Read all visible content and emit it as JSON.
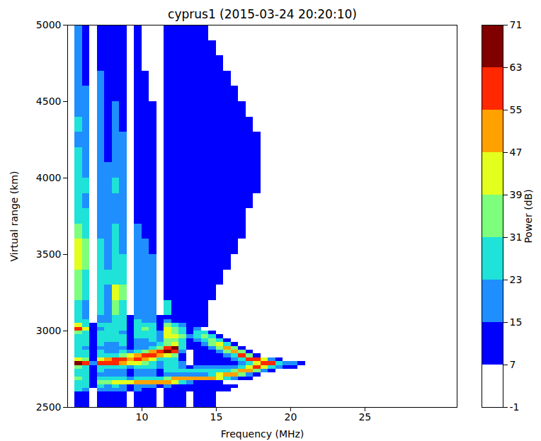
{
  "chart_data": {
    "type": "heatmap",
    "title": "cyprus1 (2015-03-24 20:20:10)",
    "x_label": "Frequency (MHz)",
    "y_label": "Virtual range (km)",
    "xlim": [
      5,
      31.2
    ],
    "ylim": [
      2500,
      5000
    ],
    "xticks": [
      10,
      15,
      20,
      25
    ],
    "yticks": [
      2500,
      3000,
      3500,
      4000,
      4500,
      5000
    ],
    "colorbar": {
      "label": "Power (dB)",
      "lim": [
        -1,
        71
      ],
      "ticks": [
        -1,
        7,
        15,
        23,
        31,
        39,
        47,
        55,
        63,
        71
      ],
      "colors": [
        "#ffffff",
        "#0000ff",
        "#1f8fff",
        "#1fe2d8",
        "#7dff7d",
        "#e3ff1d",
        "#ffa200",
        "#ff2800",
        "#800000"
      ]
    },
    "x_edges": [
      5.5,
      6,
      6.5,
      7,
      7.5,
      8,
      8.5,
      9,
      9.5,
      10,
      10.5,
      11,
      11.5,
      12,
      12.5,
      13,
      13.5,
      14,
      14.5,
      15,
      15.5,
      16,
      16.5,
      17,
      17.5,
      18,
      18.5,
      19,
      19.5,
      20,
      20.5,
      21
    ],
    "y_edges": [
      2500,
      2600,
      2625,
      2650,
      2675,
      2700,
      2725,
      2750,
      2775,
      2800,
      2825,
      2850,
      2875,
      2900,
      2925,
      2950,
      2975,
      3000,
      3025,
      3050,
      3075,
      3100,
      3200,
      3300,
      3400,
      3500,
      3600,
      3700,
      3800,
      3900,
      4000,
      4100,
      4200,
      4300,
      4400,
      4500,
      4600,
      4700,
      4800,
      4900,
      5000
    ],
    "z": [
      [
        11,
        11,
        null,
        11,
        11,
        11,
        11,
        null,
        11,
        11,
        11,
        null,
        11,
        11,
        11,
        null,
        11,
        11,
        11,
        null,
        null,
        null,
        null,
        null,
        null,
        null,
        null,
        null,
        null,
        null,
        null
      ],
      [
        27,
        19,
        null,
        19,
        19,
        19,
        19,
        11,
        19,
        11,
        11,
        null,
        11,
        11,
        11,
        11,
        11,
        11,
        11,
        11,
        11,
        null,
        null,
        null,
        null,
        null,
        null,
        null,
        null,
        null,
        null
      ],
      [
        27,
        27,
        11,
        27,
        19,
        27,
        19,
        11,
        19,
        19,
        19,
        11,
        19,
        11,
        11,
        11,
        11,
        11,
        11,
        11,
        11,
        11,
        null,
        null,
        null,
        null,
        null,
        null,
        null,
        null,
        null
      ],
      [
        27,
        27,
        11,
        35,
        35,
        43,
        43,
        43,
        51,
        51,
        51,
        51,
        51,
        43,
        27,
        19,
        11,
        11,
        11,
        11,
        null,
        null,
        null,
        null,
        null,
        null,
        null,
        null,
        null,
        null,
        null
      ],
      [
        35,
        27,
        11,
        27,
        27,
        27,
        27,
        19,
        27,
        27,
        27,
        27,
        35,
        51,
        51,
        51,
        51,
        51,
        51,
        43,
        27,
        19,
        11,
        11,
        null,
        null,
        null,
        null,
        null,
        null,
        null
      ],
      [
        27,
        27,
        11,
        19,
        19,
        19,
        19,
        11,
        19,
        19,
        19,
        11,
        19,
        19,
        19,
        19,
        19,
        19,
        27,
        43,
        51,
        51,
        35,
        19,
        11,
        null,
        null,
        null,
        null,
        null,
        null
      ],
      [
        27,
        27,
        11,
        27,
        19,
        19,
        19,
        11,
        19,
        19,
        19,
        11,
        27,
        27,
        27,
        27,
        27,
        27,
        27,
        27,
        27,
        35,
        51,
        51,
        35,
        19,
        11,
        null,
        null,
        null,
        null
      ],
      [
        35,
        27,
        11,
        27,
        27,
        27,
        27,
        19,
        27,
        27,
        27,
        19,
        27,
        27,
        19,
        11,
        19,
        19,
        19,
        19,
        19,
        19,
        27,
        43,
        59,
        43,
        27,
        19,
        11,
        11,
        null
      ],
      [
        67,
        59,
        19,
        59,
        59,
        59,
        51,
        43,
        43,
        35,
        27,
        19,
        27,
        27,
        19,
        null,
        11,
        11,
        11,
        11,
        11,
        11,
        19,
        27,
        43,
        59,
        59,
        27,
        19,
        19,
        11
      ],
      [
        43,
        35,
        11,
        43,
        51,
        59,
        59,
        51,
        59,
        51,
        43,
        27,
        27,
        27,
        11,
        null,
        11,
        11,
        11,
        11,
        11,
        19,
        27,
        59,
        59,
        43,
        19,
        11,
        null,
        null,
        null
      ],
      [
        27,
        27,
        11,
        27,
        27,
        27,
        35,
        43,
        51,
        59,
        59,
        51,
        43,
        35,
        11,
        null,
        11,
        11,
        11,
        11,
        19,
        27,
        59,
        35,
        11,
        null,
        null,
        null,
        null,
        null,
        null
      ],
      [
        27,
        27,
        11,
        27,
        19,
        19,
        27,
        19,
        27,
        35,
        51,
        59,
        67,
        59,
        19,
        null,
        11,
        11,
        11,
        19,
        35,
        51,
        35,
        11,
        null,
        null,
        null,
        null,
        null,
        null,
        null
      ],
      [
        27,
        19,
        11,
        19,
        19,
        19,
        19,
        11,
        19,
        19,
        27,
        35,
        59,
        67,
        27,
        11,
        11,
        11,
        19,
        35,
        51,
        35,
        11,
        null,
        null,
        null,
        null,
        null,
        null,
        null,
        null
      ],
      [
        27,
        27,
        11,
        27,
        19,
        19,
        27,
        11,
        19,
        19,
        19,
        27,
        35,
        43,
        27,
        11,
        11,
        19,
        35,
        43,
        27,
        11,
        null,
        null,
        null,
        null,
        null,
        null,
        null,
        null,
        null
      ],
      [
        27,
        27,
        11,
        27,
        27,
        27,
        27,
        11,
        19,
        19,
        27,
        19,
        35,
        35,
        27,
        11,
        19,
        27,
        35,
        27,
        11,
        null,
        null,
        null,
        null,
        null,
        null,
        null,
        null,
        null,
        null
      ],
      [
        27,
        27,
        11,
        27,
        27,
        27,
        27,
        11,
        27,
        27,
        27,
        19,
        43,
        43,
        35,
        19,
        27,
        35,
        27,
        11,
        null,
        null,
        null,
        null,
        null,
        null,
        null,
        null,
        null,
        null,
        null
      ],
      [
        35,
        27,
        11,
        27,
        27,
        27,
        19,
        11,
        27,
        27,
        27,
        19,
        43,
        35,
        27,
        11,
        27,
        27,
        11,
        null,
        null,
        null,
        null,
        null,
        null,
        null,
        null,
        null,
        null,
        null,
        null
      ],
      [
        59,
        43,
        11,
        19,
        27,
        27,
        27,
        11,
        27,
        35,
        27,
        11,
        43,
        35,
        27,
        11,
        19,
        null,
        null,
        null,
        null,
        null,
        null,
        null,
        null,
        null,
        null,
        null,
        null,
        null,
        null
      ],
      [
        43,
        27,
        11,
        27,
        27,
        27,
        27,
        11,
        27,
        27,
        27,
        11,
        35,
        27,
        19,
        11,
        11,
        11,
        null,
        null,
        null,
        null,
        null,
        null,
        null,
        null,
        null,
        null,
        null,
        null,
        null
      ],
      [
        27,
        27,
        null,
        19,
        19,
        27,
        27,
        11,
        27,
        19,
        19,
        11,
        19,
        11,
        11,
        11,
        11,
        11,
        null,
        null,
        null,
        null,
        null,
        null,
        null,
        null,
        null,
        null,
        null,
        null,
        null
      ],
      [
        27,
        19,
        null,
        19,
        19,
        27,
        27,
        11,
        19,
        19,
        19,
        11,
        11,
        11,
        11,
        11,
        11,
        11,
        null,
        null,
        null,
        null,
        null,
        null,
        null,
        null,
        null,
        null,
        null,
        null,
        null
      ],
      [
        27,
        19,
        null,
        27,
        19,
        35,
        27,
        null,
        19,
        19,
        19,
        null,
        27,
        11,
        11,
        11,
        11,
        11,
        null,
        null,
        null,
        null,
        null,
        null,
        null,
        null,
        null,
        null,
        null,
        null,
        null
      ],
      [
        35,
        27,
        null,
        27,
        19,
        43,
        35,
        null,
        19,
        19,
        19,
        null,
        11,
        11,
        11,
        11,
        11,
        11,
        11,
        null,
        null,
        null,
        null,
        null,
        null,
        null,
        null,
        null,
        null,
        null,
        null
      ],
      [
        35,
        27,
        null,
        27,
        27,
        27,
        27,
        null,
        19,
        19,
        19,
        null,
        11,
        11,
        11,
        11,
        11,
        11,
        11,
        11,
        null,
        null,
        null,
        null,
        null,
        null,
        null,
        null,
        null,
        null,
        null
      ],
      [
        43,
        35,
        null,
        27,
        19,
        27,
        27,
        null,
        19,
        19,
        19,
        null,
        11,
        11,
        11,
        11,
        11,
        11,
        11,
        11,
        11,
        null,
        null,
        null,
        null,
        null,
        null,
        null,
        null,
        null,
        null
      ],
      [
        43,
        35,
        null,
        27,
        19,
        27,
        19,
        null,
        19,
        19,
        11,
        null,
        11,
        11,
        11,
        11,
        11,
        11,
        11,
        11,
        11,
        11,
        null,
        null,
        null,
        null,
        null,
        null,
        null,
        null,
        null
      ],
      [
        35,
        27,
        null,
        19,
        19,
        27,
        19,
        null,
        19,
        11,
        11,
        null,
        11,
        11,
        11,
        11,
        11,
        11,
        11,
        11,
        11,
        11,
        11,
        null,
        null,
        null,
        null,
        null,
        null,
        null,
        null
      ],
      [
        27,
        27,
        null,
        19,
        19,
        19,
        19,
        null,
        11,
        11,
        11,
        null,
        11,
        11,
        11,
        11,
        11,
        11,
        11,
        11,
        11,
        11,
        11,
        null,
        null,
        null,
        null,
        null,
        null,
        null,
        null
      ],
      [
        27,
        19,
        null,
        19,
        19,
        19,
        19,
        null,
        11,
        11,
        11,
        null,
        11,
        11,
        11,
        11,
        11,
        11,
        11,
        11,
        11,
        11,
        11,
        11,
        null,
        null,
        null,
        null,
        null,
        null,
        null
      ],
      [
        27,
        27,
        null,
        19,
        19,
        27,
        19,
        null,
        11,
        11,
        11,
        null,
        11,
        11,
        11,
        11,
        11,
        11,
        11,
        11,
        11,
        11,
        11,
        11,
        11,
        null,
        null,
        null,
        null,
        null,
        null
      ],
      [
        27,
        19,
        null,
        19,
        19,
        19,
        19,
        null,
        11,
        11,
        11,
        null,
        11,
        11,
        11,
        11,
        11,
        11,
        11,
        11,
        11,
        11,
        11,
        11,
        11,
        null,
        null,
        null,
        null,
        null,
        null
      ],
      [
        27,
        19,
        null,
        19,
        11,
        19,
        19,
        null,
        11,
        11,
        11,
        null,
        11,
        11,
        11,
        11,
        11,
        11,
        11,
        11,
        11,
        11,
        11,
        11,
        11,
        null,
        null,
        null,
        null,
        null,
        null
      ],
      [
        19,
        19,
        null,
        19,
        11,
        19,
        19,
        null,
        11,
        11,
        11,
        null,
        11,
        11,
        11,
        11,
        11,
        11,
        11,
        11,
        11,
        11,
        11,
        11,
        11,
        null,
        null,
        null,
        null,
        null,
        null
      ],
      [
        27,
        19,
        null,
        19,
        11,
        19,
        11,
        null,
        11,
        11,
        11,
        null,
        11,
        11,
        11,
        11,
        11,
        11,
        11,
        11,
        11,
        11,
        11,
        11,
        null,
        null,
        null,
        null,
        null,
        null,
        null
      ],
      [
        19,
        19,
        null,
        19,
        11,
        19,
        11,
        null,
        11,
        11,
        11,
        null,
        11,
        11,
        11,
        11,
        11,
        11,
        11,
        11,
        11,
        11,
        11,
        null,
        null,
        null,
        null,
        null,
        null,
        null,
        null
      ],
      [
        19,
        19,
        null,
        19,
        11,
        11,
        11,
        null,
        11,
        11,
        null,
        null,
        11,
        11,
        11,
        11,
        11,
        11,
        11,
        11,
        11,
        11,
        null,
        null,
        null,
        null,
        null,
        null,
        null,
        null,
        null
      ],
      [
        19,
        11,
        null,
        19,
        11,
        11,
        11,
        null,
        11,
        11,
        null,
        null,
        11,
        11,
        11,
        11,
        11,
        11,
        11,
        11,
        11,
        null,
        null,
        null,
        null,
        null,
        null,
        null,
        null,
        null,
        null
      ],
      [
        19,
        11,
        null,
        11,
        11,
        11,
        11,
        null,
        11,
        null,
        null,
        null,
        11,
        11,
        11,
        11,
        11,
        11,
        11,
        11,
        null,
        null,
        null,
        null,
        null,
        null,
        null,
        null,
        null,
        null,
        null
      ],
      [
        19,
        11,
        null,
        11,
        11,
        11,
        11,
        null,
        11,
        null,
        null,
        null,
        11,
        11,
        11,
        11,
        11,
        11,
        11,
        null,
        null,
        null,
        null,
        null,
        null,
        null,
        null,
        null,
        null,
        null,
        null
      ],
      [
        19,
        11,
        null,
        11,
        11,
        11,
        11,
        null,
        11,
        null,
        null,
        null,
        11,
        11,
        11,
        11,
        11,
        11,
        null,
        null,
        null,
        null,
        null,
        null,
        null,
        null,
        null,
        null,
        null,
        null,
        null
      ]
    ]
  }
}
